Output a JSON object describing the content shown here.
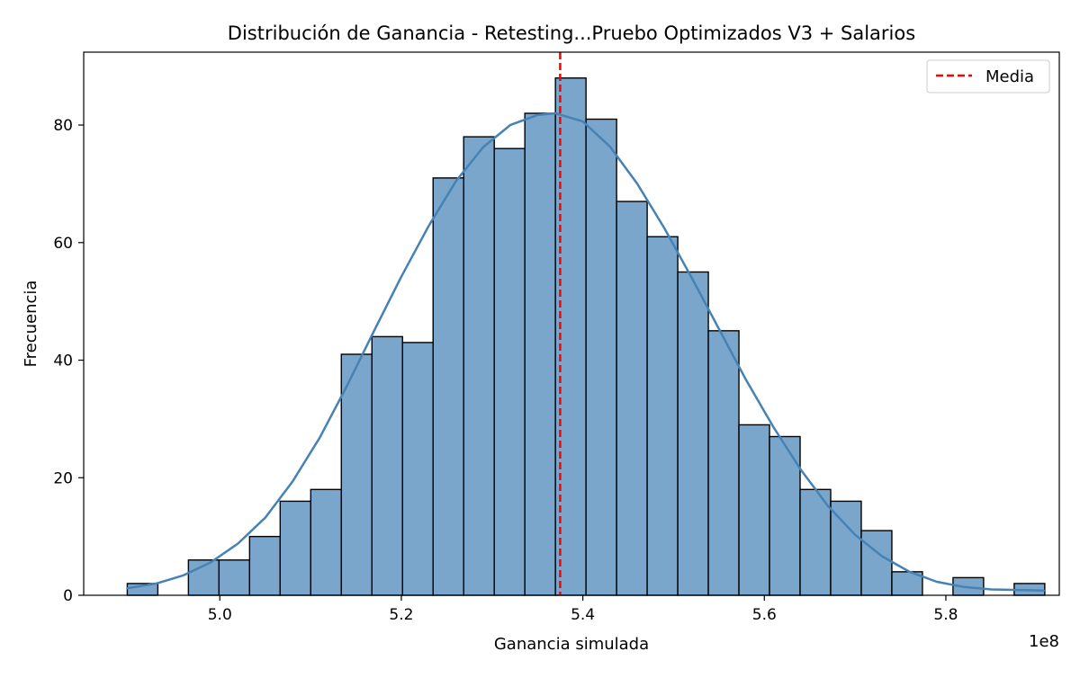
{
  "chart_data": {
    "type": "bar",
    "title": "Distribución de Ganancia - Retesting...Pruebo Optimizados V3 + Salarios",
    "xlabel": "Ganancia simulada",
    "ylabel": "Frecuencia",
    "x_offset_label": "1e8",
    "xlim": [
      4.85,
      5.925
    ],
    "ylim": [
      0,
      92.4
    ],
    "x_ticks": [
      {
        "value": 5.0,
        "label": "5.0"
      },
      {
        "value": 5.2,
        "label": "5.2"
      },
      {
        "value": 5.4,
        "label": "5.4"
      },
      {
        "value": 5.6,
        "label": "5.6"
      },
      {
        "value": 5.8,
        "label": "5.8"
      }
    ],
    "y_ticks": [
      {
        "value": 0,
        "label": "0"
      },
      {
        "value": 20,
        "label": "20"
      },
      {
        "value": 40,
        "label": "40"
      },
      {
        "value": 60,
        "label": "60"
      },
      {
        "value": 80,
        "label": "80"
      }
    ],
    "bin_start": 4.898,
    "bin_width": 0.0337,
    "counts": [
      2,
      0,
      6,
      6,
      10,
      16,
      18,
      41,
      44,
      43,
      71,
      78,
      76,
      82,
      88,
      81,
      67,
      61,
      55,
      45,
      29,
      27,
      18,
      16,
      11,
      4,
      0,
      3,
      0,
      2
    ],
    "kde_points": [
      [
        4.898,
        1.2
      ],
      [
        4.93,
        2.0
      ],
      [
        4.96,
        3.4
      ],
      [
        4.99,
        5.6
      ],
      [
        5.02,
        8.8
      ],
      [
        5.05,
        13.2
      ],
      [
        5.08,
        19.3
      ],
      [
        5.11,
        26.8
      ],
      [
        5.14,
        35.6
      ],
      [
        5.17,
        45.0
      ],
      [
        5.2,
        54.2
      ],
      [
        5.23,
        62.8
      ],
      [
        5.26,
        70.4
      ],
      [
        5.29,
        76.2
      ],
      [
        5.32,
        80.0
      ],
      [
        5.35,
        81.7
      ],
      [
        5.37,
        82.0
      ],
      [
        5.4,
        80.6
      ],
      [
        5.43,
        76.3
      ],
      [
        5.46,
        70.0
      ],
      [
        5.49,
        62.4
      ],
      [
        5.52,
        54.0
      ],
      [
        5.55,
        45.3
      ],
      [
        5.58,
        36.6
      ],
      [
        5.61,
        28.6
      ],
      [
        5.64,
        21.4
      ],
      [
        5.67,
        15.2
      ],
      [
        5.7,
        10.3
      ],
      [
        5.73,
        6.6
      ],
      [
        5.76,
        4.0
      ],
      [
        5.79,
        2.3
      ],
      [
        5.82,
        1.4
      ],
      [
        5.85,
        1.0
      ],
      [
        5.88,
        0.9
      ],
      [
        5.908,
        0.8
      ]
    ],
    "mean": 5.375,
    "bar_fill": "#7ba6cc",
    "bar_edge": "#000000",
    "kde_color": "#4682b4",
    "mean_color": "#ff0000",
    "legend": {
      "placement": "top-right",
      "entries": [
        "Media"
      ]
    },
    "grid": false
  }
}
